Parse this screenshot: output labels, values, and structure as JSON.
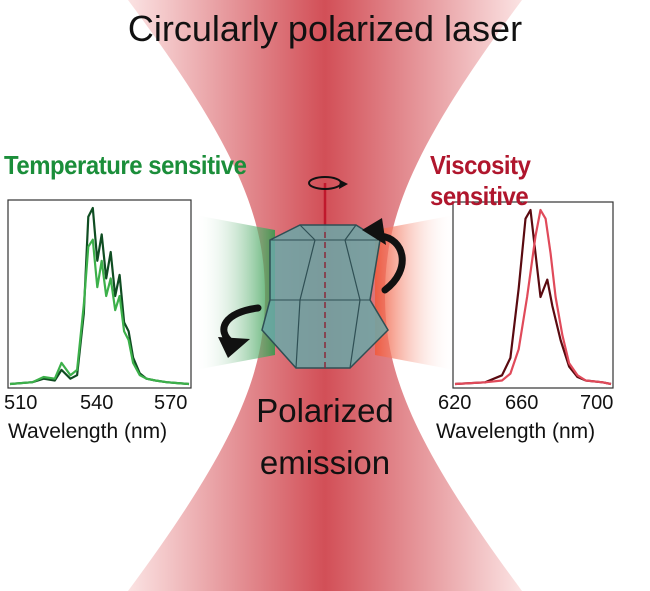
{
  "title": "Circularly polarized laser",
  "center_label_line1": "Polarized",
  "center_label_line2": "emission",
  "left_panel": {
    "heading": "Temperature sensitive",
    "xlabel": "Wavelength (nm)",
    "xticks": [
      "510",
      "540",
      "570"
    ],
    "color": "#1b8e3a"
  },
  "right_panel": {
    "heading": "Viscosity sensitive",
    "xlabel": "Wavelength (nm)",
    "xticks": [
      "620",
      "660",
      "700"
    ],
    "color": "#b0162d"
  },
  "chart_data": [
    {
      "type": "line",
      "xlim": [
        505,
        585
      ],
      "series": [
        {
          "color": "#0f4d22",
          "x": [
            505,
            515,
            520,
            525,
            528,
            532,
            535,
            538,
            540,
            542,
            544,
            546,
            548,
            550,
            552,
            554,
            556,
            558,
            560,
            563,
            566,
            570,
            575,
            580,
            585
          ],
          "y": [
            0,
            0.01,
            0.03,
            0.02,
            0.08,
            0.03,
            0.05,
            0.4,
            0.95,
            1.0,
            0.7,
            0.85,
            0.6,
            0.75,
            0.5,
            0.62,
            0.35,
            0.3,
            0.15,
            0.06,
            0.03,
            0.02,
            0.01,
            0.005,
            0
          ]
        },
        {
          "color": "#3cb04a",
          "x": [
            505,
            515,
            520,
            525,
            528,
            532,
            535,
            538,
            540,
            542,
            544,
            546,
            548,
            550,
            552,
            554,
            556,
            558,
            560,
            563,
            566,
            570,
            575,
            580,
            585
          ],
          "y": [
            0,
            0.01,
            0.04,
            0.03,
            0.12,
            0.05,
            0.08,
            0.45,
            0.78,
            0.82,
            0.55,
            0.7,
            0.5,
            0.6,
            0.42,
            0.5,
            0.3,
            0.25,
            0.12,
            0.05,
            0.03,
            0.02,
            0.01,
            0.005,
            0
          ]
        }
      ]
    },
    {
      "type": "line",
      "xlim": [
        612,
        705
      ],
      "series": [
        {
          "color": "#5a0a10",
          "x": [
            612,
            630,
            640,
            645,
            650,
            654,
            657,
            660,
            663,
            667,
            670,
            675,
            680,
            685,
            690,
            700,
            705
          ],
          "y": [
            0,
            0.01,
            0.05,
            0.15,
            0.55,
            0.95,
            1.0,
            0.75,
            0.5,
            0.6,
            0.45,
            0.25,
            0.1,
            0.04,
            0.02,
            0.01,
            0
          ]
        },
        {
          "color": "#e04a5a",
          "x": [
            612,
            630,
            640,
            645,
            650,
            655,
            660,
            663,
            666,
            669,
            672,
            676,
            680,
            685,
            690,
            700,
            705
          ],
          "y": [
            0,
            0.01,
            0.02,
            0.06,
            0.2,
            0.5,
            0.85,
            1.0,
            0.95,
            0.75,
            0.5,
            0.28,
            0.12,
            0.05,
            0.02,
            0.01,
            0
          ]
        }
      ]
    }
  ]
}
